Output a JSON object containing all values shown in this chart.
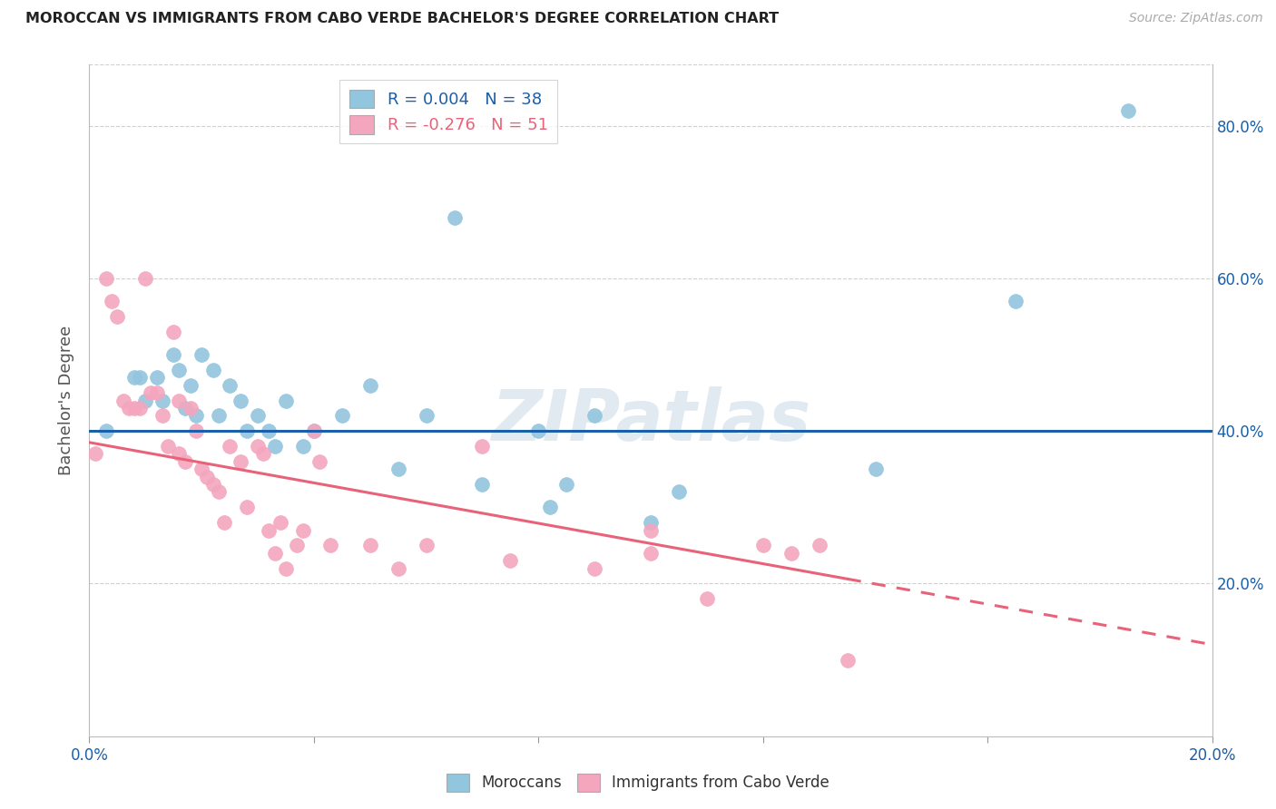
{
  "title": "MOROCCAN VS IMMIGRANTS FROM CABO VERDE BACHELOR'S DEGREE CORRELATION CHART",
  "source": "Source: ZipAtlas.com",
  "ylabel": "Bachelor's Degree",
  "xlim": [
    0.0,
    0.2
  ],
  "ylim": [
    0.0,
    0.88
  ],
  "y_ticks": [
    0.2,
    0.4,
    0.6,
    0.8
  ],
  "y_tick_labels": [
    "20.0%",
    "40.0%",
    "60.0%",
    "80.0%"
  ],
  "x_ticks": [
    0.0,
    0.04,
    0.08,
    0.12,
    0.16,
    0.2
  ],
  "x_tick_labels": [
    "0.0%",
    "",
    "",
    "",
    "",
    "20.0%"
  ],
  "legend_blue_label": "R = 0.004   N = 38",
  "legend_pink_label": "R = -0.276   N = 51",
  "blue_color": "#92c5de",
  "pink_color": "#f4a6be",
  "blue_line_color": "#1a5fa8",
  "pink_line_color": "#e8637a",
  "grid_color": "#d0d0d0",
  "watermark": "ZIPatlas",
  "blue_line_x0": 0.0,
  "blue_line_x1": 0.2,
  "blue_line_y0": 0.4,
  "blue_line_y1": 0.4,
  "pink_line_x0": 0.0,
  "pink_line_solid_x1": 0.135,
  "pink_line_x1": 0.2,
  "pink_line_y0": 0.385,
  "pink_line_y1": 0.12,
  "blue_scatter_x": [
    0.003,
    0.008,
    0.009,
    0.01,
    0.012,
    0.013,
    0.015,
    0.016,
    0.017,
    0.018,
    0.019,
    0.02,
    0.022,
    0.023,
    0.025,
    0.027,
    0.028,
    0.03,
    0.032,
    0.033,
    0.035,
    0.038,
    0.04,
    0.045,
    0.05,
    0.055,
    0.06,
    0.065,
    0.07,
    0.08,
    0.082,
    0.085,
    0.09,
    0.1,
    0.105,
    0.14,
    0.165,
    0.185
  ],
  "blue_scatter_y": [
    0.4,
    0.47,
    0.47,
    0.44,
    0.47,
    0.44,
    0.5,
    0.48,
    0.43,
    0.46,
    0.42,
    0.5,
    0.48,
    0.42,
    0.46,
    0.44,
    0.4,
    0.42,
    0.4,
    0.38,
    0.44,
    0.38,
    0.4,
    0.42,
    0.46,
    0.35,
    0.42,
    0.68,
    0.33,
    0.4,
    0.3,
    0.33,
    0.42,
    0.28,
    0.32,
    0.35,
    0.57,
    0.82
  ],
  "pink_scatter_x": [
    0.001,
    0.003,
    0.004,
    0.005,
    0.006,
    0.007,
    0.008,
    0.009,
    0.01,
    0.011,
    0.012,
    0.013,
    0.014,
    0.015,
    0.016,
    0.016,
    0.017,
    0.018,
    0.019,
    0.02,
    0.021,
    0.022,
    0.023,
    0.024,
    0.025,
    0.027,
    0.028,
    0.03,
    0.031,
    0.032,
    0.033,
    0.034,
    0.035,
    0.037,
    0.038,
    0.04,
    0.041,
    0.043,
    0.05,
    0.055,
    0.06,
    0.07,
    0.075,
    0.09,
    0.1,
    0.1,
    0.11,
    0.12,
    0.125,
    0.13,
    0.135
  ],
  "pink_scatter_y": [
    0.37,
    0.6,
    0.57,
    0.55,
    0.44,
    0.43,
    0.43,
    0.43,
    0.6,
    0.45,
    0.45,
    0.42,
    0.38,
    0.53,
    0.44,
    0.37,
    0.36,
    0.43,
    0.4,
    0.35,
    0.34,
    0.33,
    0.32,
    0.28,
    0.38,
    0.36,
    0.3,
    0.38,
    0.37,
    0.27,
    0.24,
    0.28,
    0.22,
    0.25,
    0.27,
    0.4,
    0.36,
    0.25,
    0.25,
    0.22,
    0.25,
    0.38,
    0.23,
    0.22,
    0.27,
    0.24,
    0.18,
    0.25,
    0.24,
    0.25,
    0.1
  ]
}
